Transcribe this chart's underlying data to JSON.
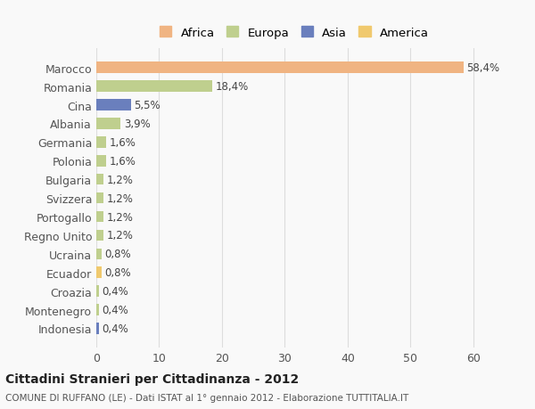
{
  "countries": [
    "Marocco",
    "Romania",
    "Cina",
    "Albania",
    "Germania",
    "Polonia",
    "Bulgaria",
    "Svizzera",
    "Portogallo",
    "Regno Unito",
    "Ucraina",
    "Ecuador",
    "Croazia",
    "Montenegro",
    "Indonesia"
  ],
  "values": [
    58.4,
    18.4,
    5.5,
    3.9,
    1.6,
    1.6,
    1.2,
    1.2,
    1.2,
    1.2,
    0.8,
    0.8,
    0.4,
    0.4,
    0.4
  ],
  "labels": [
    "58,4%",
    "18,4%",
    "5,5%",
    "3,9%",
    "1,6%",
    "1,6%",
    "1,2%",
    "1,2%",
    "1,2%",
    "1,2%",
    "0,8%",
    "0,8%",
    "0,4%",
    "0,4%",
    "0,4%"
  ],
  "colors": [
    "#F0B482",
    "#BFCF8E",
    "#6A7FBD",
    "#BFCF8E",
    "#BFCF8E",
    "#BFCF8E",
    "#BFCF8E",
    "#BFCF8E",
    "#BFCF8E",
    "#BFCF8E",
    "#BFCF8E",
    "#F0C96E",
    "#BFCF8E",
    "#BFCF8E",
    "#6A7FBD"
  ],
  "legend_labels": [
    "Africa",
    "Europa",
    "Asia",
    "America"
  ],
  "legend_colors": [
    "#F0B482",
    "#BFCF8E",
    "#6A7FBD",
    "#F0C96E"
  ],
  "xlim": [
    0,
    63
  ],
  "xticks": [
    0,
    10,
    20,
    30,
    40,
    50,
    60
  ],
  "title": "Cittadini Stranieri per Cittadinanza - 2012",
  "subtitle": "COMUNE DI RUFFANO (LE) - Dati ISTAT al 1° gennaio 2012 - Elaborazione TUTTITALIA.IT",
  "background_color": "#f9f9f9",
  "grid_color": "#dddddd",
  "bar_height": 0.6
}
